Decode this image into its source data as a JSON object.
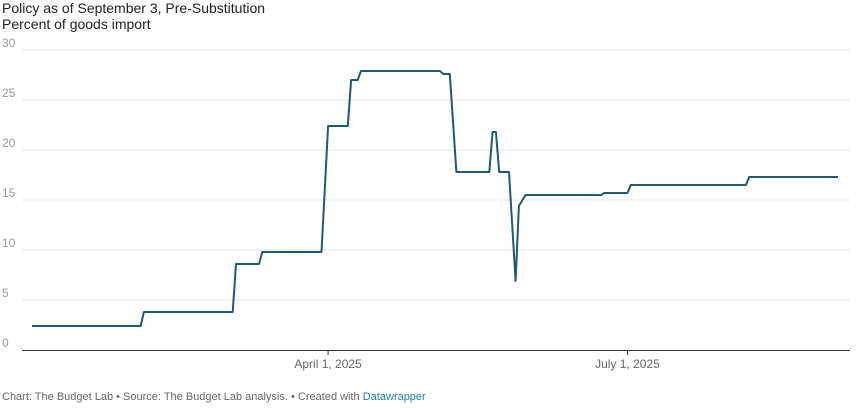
{
  "header": {
    "title": "Policy as of September 3, Pre-Substitution",
    "subtitle": "Percent of goods import"
  },
  "footer": {
    "credit": "Chart: The Budget Lab • Source: The Budget Lab analysis. • Created with ",
    "link_label": "Datawrapper"
  },
  "colors": {
    "line": "#1f5a73",
    "grid": "#e6e6e6",
    "axis": "#333333",
    "link": "#1d81a2"
  },
  "chart_data": {
    "type": "line",
    "title": "Policy as of September 3, Pre-Substitution",
    "subtitle": "Percent of goods import",
    "xlabel": "",
    "ylabel": "",
    "ylim": [
      0,
      30
    ],
    "yticks": [
      "0",
      "5",
      "10",
      "15",
      "20",
      "25",
      "30"
    ],
    "xlim": [
      "2025-01-01",
      "2025-09-03"
    ],
    "xticks": [
      {
        "date": "2025-04-01",
        "label": "April 1, 2025"
      },
      {
        "date": "2025-07-01",
        "label": "July 1, 2025"
      }
    ],
    "grid": true,
    "series": [
      {
        "values": [
          [
            "2025-01-01",
            2.4
          ],
          [
            "2025-02-03",
            2.4
          ],
          [
            "2025-02-04",
            3.8
          ],
          [
            "2025-03-03",
            3.8
          ],
          [
            "2025-03-04",
            8.6
          ],
          [
            "2025-03-11",
            8.6
          ],
          [
            "2025-03-12",
            9.8
          ],
          [
            "2025-03-30",
            9.8
          ],
          [
            "2025-04-01",
            22.4
          ],
          [
            "2025-04-07",
            22.4
          ],
          [
            "2025-04-08",
            27.0
          ],
          [
            "2025-04-10",
            27.0
          ],
          [
            "2025-04-11",
            27.9
          ],
          [
            "2025-05-05",
            27.9
          ],
          [
            "2025-05-06",
            27.6
          ],
          [
            "2025-05-08",
            27.6
          ],
          [
            "2025-05-10",
            17.8
          ],
          [
            "2025-05-20",
            17.8
          ],
          [
            "2025-05-21",
            21.8
          ],
          [
            "2025-05-22",
            21.8
          ],
          [
            "2025-05-23",
            17.8
          ],
          [
            "2025-05-26",
            17.8
          ],
          [
            "2025-05-28",
            6.9
          ],
          [
            "2025-05-29",
            14.4
          ],
          [
            "2025-05-31",
            15.5
          ],
          [
            "2025-06-23",
            15.5
          ],
          [
            "2025-06-24",
            15.7
          ],
          [
            "2025-07-01",
            15.7
          ],
          [
            "2025-07-02",
            16.5
          ],
          [
            "2025-08-06",
            16.5
          ],
          [
            "2025-08-07",
            17.3
          ],
          [
            "2025-09-03",
            17.3
          ]
        ]
      }
    ]
  }
}
